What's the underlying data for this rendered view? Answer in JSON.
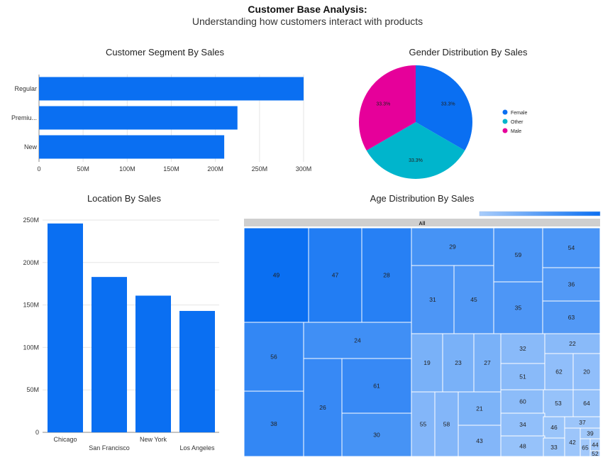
{
  "header": {
    "title": "Customer Base Analysis:",
    "subtitle": "Understanding how customers interact with products"
  },
  "colors": {
    "bar": "#0a6ff2",
    "female": "#0a6ff2",
    "other": "#00b5cc",
    "male": "#e6009a",
    "treemap_dark": "#0a6ff2",
    "treemap_light": "#a9cdfb",
    "grid": "#e6e6e6"
  },
  "chart_data": [
    {
      "type": "bar",
      "orientation": "horizontal",
      "title": "Customer Segment By Sales",
      "categories": [
        "Regular",
        "Premiu...",
        "New"
      ],
      "values": [
        300000000,
        225000000,
        210000000
      ],
      "xlim": [
        0,
        300000000
      ],
      "ticks": [
        "0",
        "50M",
        "100M",
        "150M",
        "200M",
        "250M",
        "300M"
      ],
      "grid": true
    },
    {
      "type": "pie",
      "title": "Gender Distribution By Sales",
      "labels": [
        "Female",
        "Other",
        "Male"
      ],
      "values": [
        33.3,
        33.3,
        33.3
      ],
      "data_labels": [
        "33.3%",
        "33.3%",
        "33.3%"
      ],
      "legend": "right"
    },
    {
      "type": "bar",
      "orientation": "vertical",
      "title": "Location By Sales",
      "categories": [
        "Chicago",
        "San Francisco",
        "New York",
        "Los Angeles"
      ],
      "values": [
        246000000,
        183000000,
        161000000,
        143000000
      ],
      "ylim": [
        0,
        250000000
      ],
      "ticks": [
        "0",
        "50M",
        "100M",
        "150M",
        "200M",
        "250M"
      ],
      "grid": true
    },
    {
      "type": "heatmap",
      "subtype": "treemap",
      "title": "Age Distribution By Sales",
      "root_label": "All",
      "legend": "top-right gradient",
      "labels": [
        "49",
        "47",
        "28",
        "29",
        "59",
        "54",
        "31",
        "45",
        "36",
        "35",
        "63",
        "24",
        "56",
        "61",
        "19",
        "23",
        "27",
        "32",
        "22",
        "51",
        "62",
        "20",
        "26",
        "21",
        "60",
        "53",
        "64",
        "38",
        "30",
        "55",
        "58",
        "34",
        "46",
        "37",
        "39",
        "43",
        "48",
        "33",
        "42",
        "65",
        "44",
        "52"
      ],
      "intensity": [
        1.0,
        0.85,
        0.82,
        0.62,
        0.6,
        0.6,
        0.58,
        0.56,
        0.55,
        0.58,
        0.55,
        0.66,
        0.74,
        0.72,
        0.3,
        0.3,
        0.3,
        0.2,
        0.2,
        0.2,
        0.16,
        0.16,
        0.72,
        0.28,
        0.18,
        0.12,
        0.12,
        0.74,
        0.62,
        0.24,
        0.24,
        0.15,
        0.1,
        0.08,
        0.06,
        0.24,
        0.12,
        0.1,
        0.08,
        0.05,
        0.04,
        0.03
      ]
    }
  ]
}
